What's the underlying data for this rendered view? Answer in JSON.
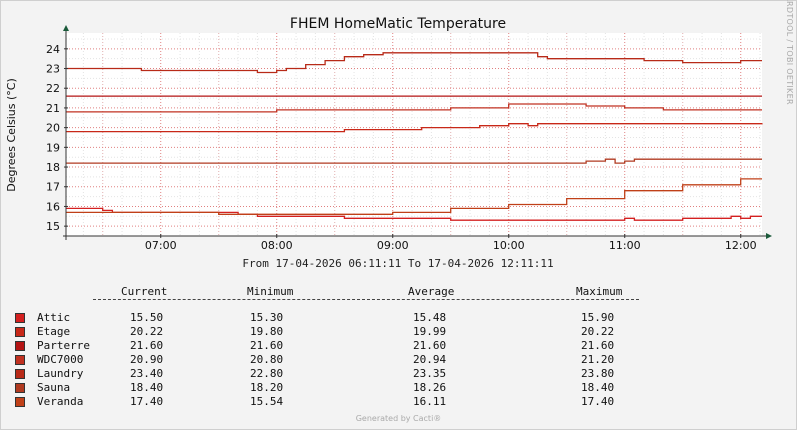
{
  "chart_data": {
    "type": "line",
    "title": "FHEM HomeMatic Temperature",
    "ylabel": "Degrees Celsius (°C)",
    "y_ticks": [
      "15",
      "16",
      "17",
      "18",
      "19",
      "20",
      "21",
      "22",
      "23",
      "24"
    ],
    "ylim": [
      14.5,
      24.6
    ],
    "xlim": [
      "06:11",
      "12:11"
    ],
    "x_ticks": [
      "07:00",
      "08:00",
      "09:00",
      "10:00",
      "11:00",
      "12:00"
    ],
    "grid": true,
    "date_range": "From 17-04-2026 06:11:11 To 17-04-2026 12:11:11",
    "legend_headers": [
      "Current",
      "Minimum",
      "Average",
      "Maximum"
    ],
    "series": [
      {
        "name": "Attic",
        "color": "#d42020",
        "x": [
          "06:11",
          "06:30",
          "06:35",
          "07:05",
          "07:40",
          "07:50",
          "08:05",
          "08:20",
          "08:35",
          "09:00",
          "09:30",
          "10:00",
          "10:30",
          "10:55",
          "11:00",
          "11:05",
          "11:30",
          "11:50",
          "11:55",
          "12:00",
          "12:05",
          "12:10"
        ],
        "y": [
          15.9,
          15.8,
          15.7,
          15.7,
          15.6,
          15.5,
          15.5,
          15.5,
          15.4,
          15.4,
          15.3,
          15.3,
          15.3,
          15.3,
          15.4,
          15.3,
          15.4,
          15.4,
          15.5,
          15.4,
          15.5,
          15.5
        ],
        "current": "15.50",
        "minimum": "15.30",
        "average": "15.48",
        "maximum": "15.90"
      },
      {
        "name": "Etage",
        "color": "#c82818",
        "x": [
          "06:11",
          "08:00",
          "08:30",
          "08:35",
          "09:00",
          "09:15",
          "09:25",
          "09:30",
          "09:45",
          "09:55",
          "10:00",
          "10:05",
          "10:10",
          "10:15",
          "10:30",
          "12:11"
        ],
        "y": [
          19.8,
          19.8,
          19.8,
          19.9,
          19.9,
          20.0,
          20.0,
          20.0,
          20.1,
          20.1,
          20.2,
          20.2,
          20.1,
          20.2,
          20.2,
          20.22
        ],
        "current": "20.22",
        "minimum": "19.80",
        "average": "19.99",
        "maximum": "20.22"
      },
      {
        "name": "Parterre",
        "color": "#b41414",
        "x": [
          "06:11",
          "12:11"
        ],
        "y": [
          21.6,
          21.6
        ],
        "current": "21.60",
        "minimum": "21.60",
        "average": "21.60",
        "maximum": "21.60"
      },
      {
        "name": "WDC7000",
        "color": "#c03020",
        "x": [
          "06:11",
          "07:30",
          "08:00",
          "09:25",
          "09:30",
          "10:00",
          "10:40",
          "11:00",
          "11:20",
          "12:00",
          "12:11"
        ],
        "y": [
          20.8,
          20.8,
          20.9,
          20.9,
          21.0,
          21.2,
          21.1,
          21.0,
          20.9,
          20.9,
          20.9
        ],
        "current": "20.90",
        "minimum": "20.80",
        "average": "20.94",
        "maximum": "21.20"
      },
      {
        "name": "Laundry",
        "color": "#b82a18",
        "x": [
          "06:11",
          "06:45",
          "06:50",
          "07:20",
          "07:40",
          "07:50",
          "08:00",
          "08:05",
          "08:15",
          "08:25",
          "08:35",
          "08:45",
          "08:55",
          "09:00",
          "09:05",
          "10:00",
          "10:15",
          "10:20",
          "10:25",
          "10:55",
          "11:10",
          "11:30",
          "12:00",
          "12:11"
        ],
        "y": [
          23.0,
          23.0,
          22.9,
          22.9,
          22.9,
          22.8,
          22.9,
          23.0,
          23.2,
          23.4,
          23.6,
          23.7,
          23.8,
          23.8,
          23.8,
          23.8,
          23.6,
          23.5,
          23.5,
          23.5,
          23.4,
          23.3,
          23.4,
          23.4
        ],
        "current": "23.40",
        "minimum": "22.80",
        "average": "23.35",
        "maximum": "23.80"
      },
      {
        "name": "Sauna",
        "color": "#b03a20",
        "x": [
          "06:11",
          "09:20",
          "10:00",
          "10:40",
          "10:50",
          "10:55",
          "11:00",
          "11:05",
          "12:11"
        ],
        "y": [
          18.2,
          18.2,
          18.2,
          18.3,
          18.4,
          18.2,
          18.3,
          18.4,
          18.4
        ],
        "current": "18.40",
        "minimum": "18.20",
        "average": "18.26",
        "maximum": "18.40"
      },
      {
        "name": "Veranda",
        "color": "#c04018",
        "x": [
          "06:11",
          "07:00",
          "07:30",
          "08:00",
          "08:30",
          "09:00",
          "09:30",
          "10:00",
          "10:30",
          "11:00",
          "11:30",
          "12:00",
          "12:11"
        ],
        "y": [
          15.7,
          15.7,
          15.6,
          15.6,
          15.6,
          15.7,
          15.9,
          16.1,
          16.4,
          16.8,
          17.1,
          17.4,
          17.4
        ],
        "current": "17.40",
        "minimum": "15.54",
        "average": "16.11",
        "maximum": "17.40"
      }
    ]
  },
  "watermark": "RRDTOOL / TOBI OETIKER",
  "footer": "Generated by Cacti®"
}
